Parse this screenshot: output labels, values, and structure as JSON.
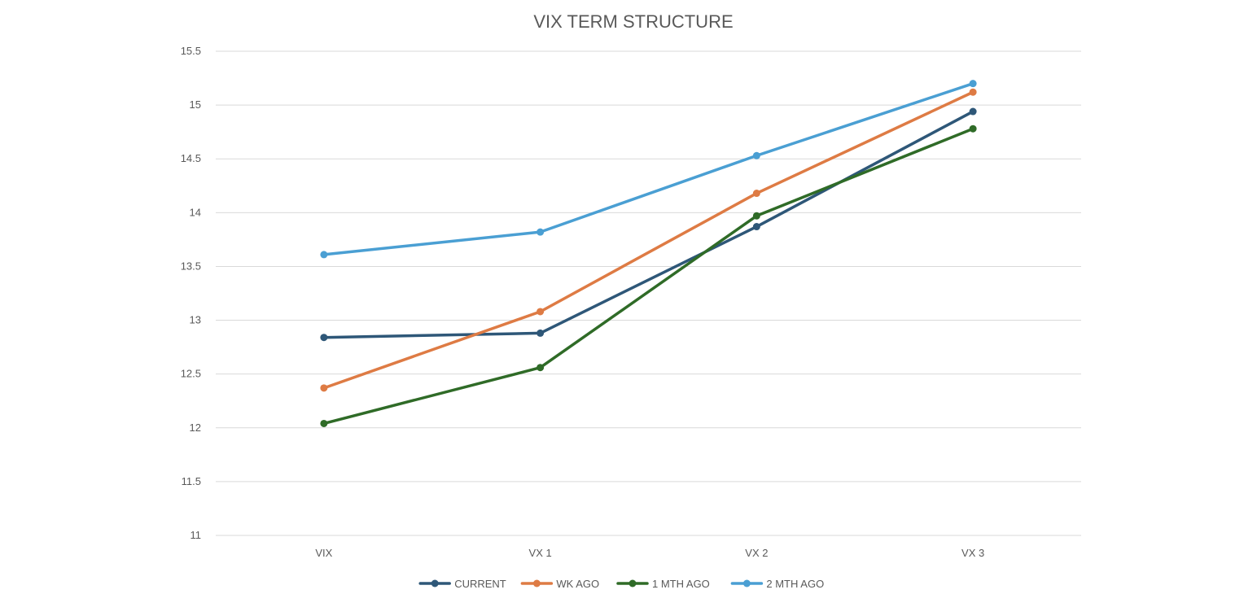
{
  "chart_data": {
    "type": "line",
    "title": "VIX TERM STRUCTURE",
    "xlabel": "",
    "ylabel": "",
    "categories": [
      "VIX",
      "VX 1",
      "VX 2",
      "VX 3"
    ],
    "ylim": [
      11,
      15.5
    ],
    "yticks": [
      "11",
      "11.5",
      "12",
      "12.5",
      "13",
      "13.5",
      "14",
      "14.5",
      "15",
      "15.5"
    ],
    "grid": "horizontal",
    "legend_position": "bottom",
    "series": [
      {
        "name": "CURRENT",
        "color": "#2e5778",
        "values": [
          12.84,
          12.88,
          13.87,
          14.94
        ]
      },
      {
        "name": "WK AGO",
        "color": "#de7b44",
        "values": [
          12.37,
          13.08,
          14.18,
          15.12
        ]
      },
      {
        "name": "1 MTH AGO",
        "color": "#2f6b27",
        "values": [
          12.04,
          12.56,
          13.97,
          14.78
        ]
      },
      {
        "name": "2 MTH AGO",
        "color": "#4a9fd3",
        "values": [
          13.61,
          13.82,
          14.53,
          15.2
        ]
      }
    ]
  }
}
